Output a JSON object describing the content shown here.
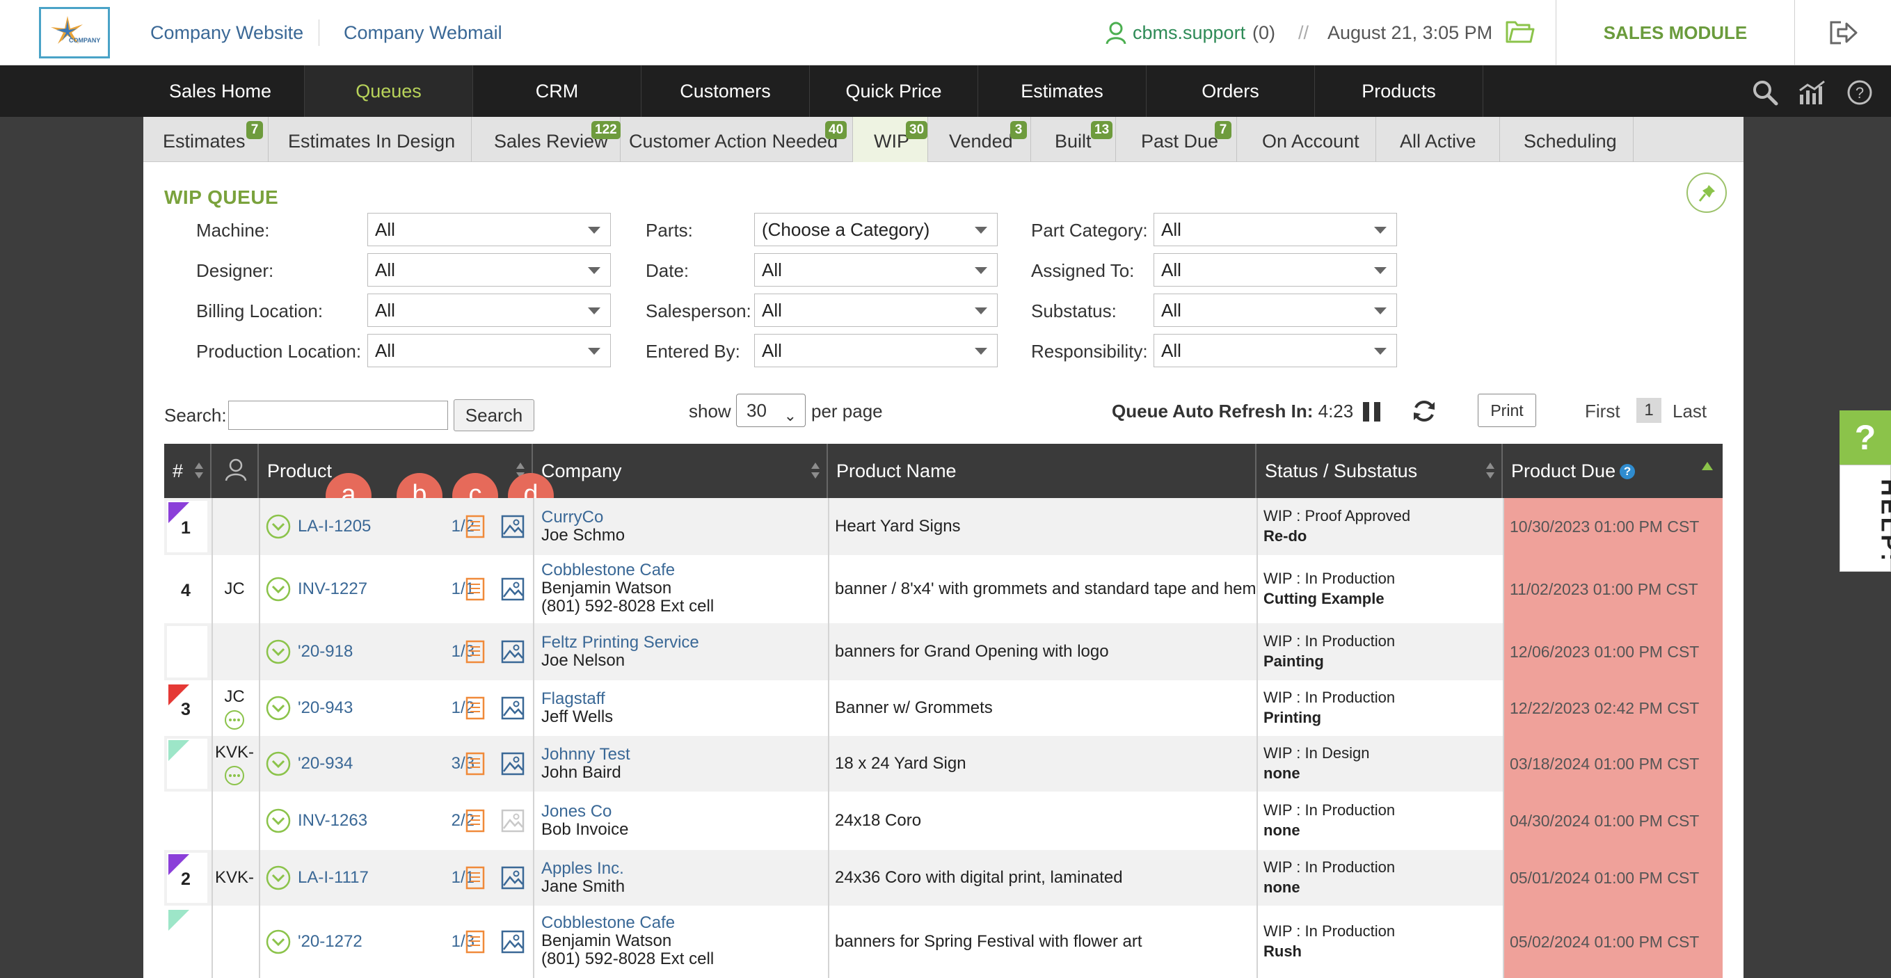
{
  "header": {
    "logo_text": "COMPANY",
    "company_website": "Company Website",
    "company_webmail": "Company Webmail",
    "user": "cbms.support",
    "user_count": "(0)",
    "separator": "//",
    "datetime": "August 21, 3:05 PM",
    "module": "SALES MODULE"
  },
  "nav": {
    "items": [
      "Sales Home",
      "Queues",
      "CRM",
      "Customers",
      "Quick Price",
      "Estimates",
      "Orders",
      "Products"
    ],
    "active": "Queues"
  },
  "subtabs": [
    {
      "label": "Estimates",
      "badge": "7"
    },
    {
      "label": "Estimates In Design",
      "badge": ""
    },
    {
      "label": "Sales Review",
      "badge": "122"
    },
    {
      "label": "Customer Action Needed",
      "badge": "40"
    },
    {
      "label": "WIP",
      "badge": "30"
    },
    {
      "label": "Vended",
      "badge": "3"
    },
    {
      "label": "Built",
      "badge": "13"
    },
    {
      "label": "Past Due",
      "badge": "7"
    },
    {
      "label": "On Account",
      "badge": ""
    },
    {
      "label": "All Active",
      "badge": ""
    },
    {
      "label": "Scheduling",
      "badge": ""
    }
  ],
  "queue": {
    "title": "WIP QUEUE",
    "filters": [
      {
        "label": "Machine:",
        "value": "All"
      },
      {
        "label": "Designer:",
        "value": "All"
      },
      {
        "label": "Billing Location:",
        "value": "All"
      },
      {
        "label": "Production Location:",
        "value": "All"
      },
      {
        "label": "Parts:",
        "value": "(Choose a Category)"
      },
      {
        "label": "Date:",
        "value": "All"
      },
      {
        "label": "Salesperson:",
        "value": "All"
      },
      {
        "label": "Entered By:",
        "value": "All"
      },
      {
        "label": "Part Category:",
        "value": "All"
      },
      {
        "label": "Assigned To:",
        "value": "All"
      },
      {
        "label": "Substatus:",
        "value": "All"
      },
      {
        "label": "Responsibility:",
        "value": "All"
      }
    ],
    "search_label": "Search:",
    "search_value": "",
    "search_button": "Search",
    "show_label": "show",
    "per_page_value": "30",
    "per_page_label": "per page",
    "refresh_label": "Queue Auto Refresh In:",
    "refresh_value": "4:23",
    "print_button": "Print",
    "pager": {
      "first": "First",
      "current": "1",
      "last": "Last"
    }
  },
  "table": {
    "columns": [
      "#",
      "",
      "Product",
      "Company",
      "Product Name",
      "Status / Substatus",
      "Product Due"
    ],
    "markers": [
      "a",
      "b",
      "c",
      "d"
    ],
    "rows": [
      {
        "num": "1",
        "flag": "#8b3fd9",
        "assign": "",
        "dots": false,
        "product": "LA-I-1205",
        "qty": "1/2",
        "image_dim": false,
        "company": "CurryCo",
        "contact": "Joe Schmo",
        "phone": "",
        "product_name": "Heart Yard Signs",
        "status": "WIP : Proof Approved",
        "substatus": "Re-do",
        "due": "10/30/2023 01:00 PM CST"
      },
      {
        "num": "4",
        "flag": "",
        "assign": "JC",
        "dots": false,
        "product": "INV-1227",
        "qty": "1/1",
        "image_dim": false,
        "company": "Cobblestone Cafe",
        "contact": "Benjamin Watson",
        "phone": "(801) 592-8028 Ext cell",
        "product_name": "banner / 8'x4' with grommets and standard tape and hem",
        "status": "WIP : In Production",
        "substatus": "Cutting Example",
        "due": "11/02/2023 01:00 PM CST"
      },
      {
        "num": "",
        "flag": "",
        "assign": "",
        "dots": false,
        "product": "'20-918",
        "qty": "1/3",
        "image_dim": false,
        "company": "Feltz Printing Service",
        "contact": "Joe Nelson",
        "phone": "",
        "product_name": "banners for Grand Opening with logo",
        "status": "WIP : In Production",
        "substatus": "Painting",
        "due": "12/06/2023 01:00 PM CST"
      },
      {
        "num": "3",
        "flag": "#e53935",
        "assign": "JC",
        "dots": true,
        "product": "'20-943",
        "qty": "1/2",
        "image_dim": false,
        "company": "Flagstaff",
        "contact": "Jeff Wells",
        "phone": "",
        "product_name": "Banner w/ Grommets",
        "status": "WIP : In Production",
        "substatus": "Printing",
        "due": "12/22/2023 02:42 PM CST"
      },
      {
        "num": "",
        "flag": "#9de6c8",
        "assign": "KVK-",
        "dots": true,
        "product": "'20-934",
        "qty": "3/3",
        "image_dim": false,
        "company": "Johnny Test",
        "contact": "John Baird",
        "phone": "",
        "product_name": "18 x 24 Yard Sign",
        "status": "WIP : In Design",
        "substatus": "none",
        "due": "03/18/2024 01:00 PM CST"
      },
      {
        "num": "",
        "flag": "",
        "assign": "",
        "dots": false,
        "product": "INV-1263",
        "qty": "2/2",
        "image_dim": true,
        "company": "Jones Co",
        "contact": "Bob Invoice",
        "phone": "",
        "product_name": "24x18 Coro",
        "status": "WIP : In Production",
        "substatus": "none",
        "due": "04/30/2024 01:00 PM CST"
      },
      {
        "num": "2",
        "flag": "#8b3fd9",
        "assign": "KVK-",
        "dots": false,
        "product": "LA-I-1117",
        "qty": "1/1",
        "image_dim": false,
        "company": "Apples Inc.",
        "contact": "Jane Smith",
        "phone": "",
        "product_name": "24x36 Coro with digital print, laminated",
        "status": "WIP : In Production",
        "substatus": "none",
        "due": "05/01/2024 01:00 PM CST"
      },
      {
        "num": "",
        "flag": "#9de6c8",
        "assign": "",
        "dots": false,
        "product": "'20-1272",
        "qty": "1/3",
        "image_dim": false,
        "company": "Cobblestone Cafe",
        "contact": "Benjamin Watson",
        "phone": "(801) 592-8028 Ext cell",
        "product_name": "banners for Spring Festival with flower art",
        "status": "WIP : In Production",
        "substatus": "Rush",
        "due": "05/02/2024 01:00 PM CST"
      }
    ]
  },
  "help_tab": {
    "icon": "?",
    "label": "HELP:"
  },
  "colors": {
    "accent": "#7aa23c",
    "link": "#3a6896",
    "due_bg": "#efa19a",
    "nav_bg": "#1f1f1f",
    "marker": "#e66a5a"
  }
}
